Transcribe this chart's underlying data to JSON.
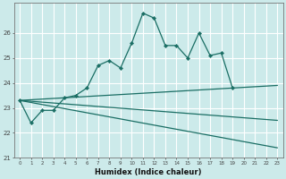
{
  "x_main": [
    0,
    1,
    2,
    3,
    4,
    5,
    6,
    7,
    8,
    9,
    10,
    11,
    12,
    13,
    14,
    15,
    16,
    17,
    18,
    19
  ],
  "y_main": [
    23.3,
    22.4,
    22.9,
    22.9,
    23.4,
    23.5,
    23.8,
    24.7,
    24.9,
    24.6,
    25.6,
    26.8,
    26.6,
    25.5,
    25.5,
    25.0,
    26.0,
    25.1,
    25.2,
    23.8
  ],
  "line_upper": [
    [
      0,
      23
    ],
    [
      23.3,
      23.9
    ]
  ],
  "line_mid": [
    [
      0,
      23
    ],
    [
      23.3,
      22.5
    ]
  ],
  "line_lower": [
    [
      0,
      23
    ],
    [
      23.3,
      21.4
    ]
  ],
  "xlabel": "Humidex (Indice chaleur)",
  "ylim": [
    21.0,
    27.2
  ],
  "xlim": [
    -0.5,
    23.5
  ],
  "yticks": [
    21,
    22,
    23,
    24,
    25,
    26
  ],
  "xticks": [
    0,
    1,
    2,
    3,
    4,
    5,
    6,
    7,
    8,
    9,
    10,
    11,
    12,
    13,
    14,
    15,
    16,
    17,
    18,
    19,
    20,
    21,
    22,
    23
  ],
  "bg_color": "#cceaea",
  "line_color": "#1a6e64",
  "grid_color": "#b0d8d8"
}
